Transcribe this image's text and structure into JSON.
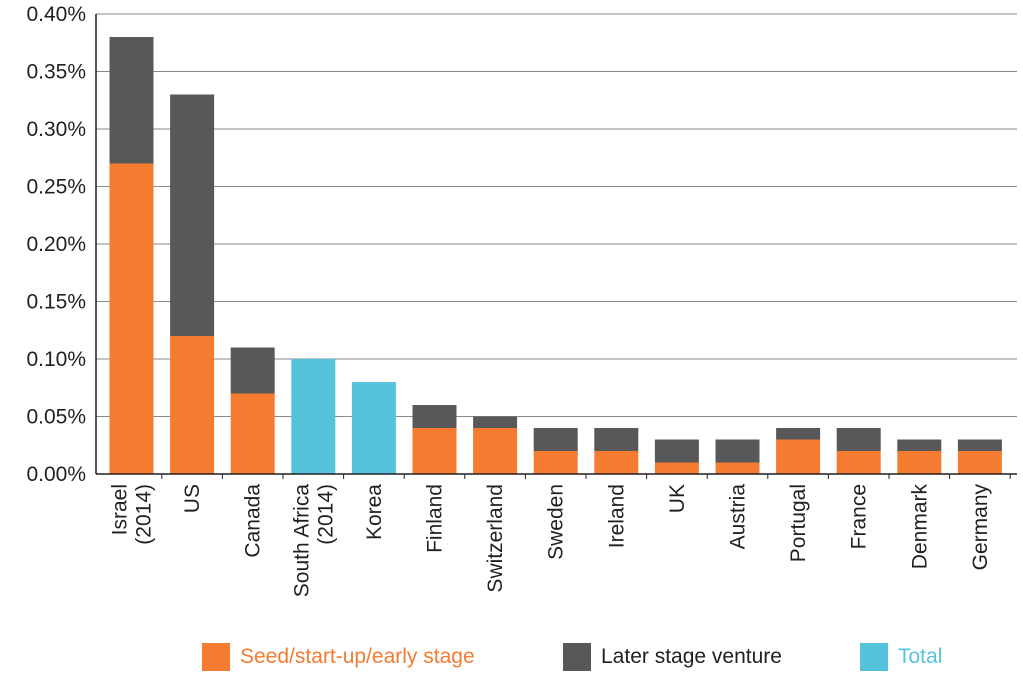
{
  "chart_data": {
    "type": "bar",
    "stacked": true,
    "categories": [
      [
        "Israel",
        "(2014)"
      ],
      [
        "US"
      ],
      [
        "Canada"
      ],
      [
        "South Africa",
        "(2014)"
      ],
      [
        "Korea"
      ],
      [
        "Finland"
      ],
      [
        "Switzerland"
      ],
      [
        "Sweden"
      ],
      [
        "Ireland"
      ],
      [
        "UK"
      ],
      [
        "Austria"
      ],
      [
        "Portugal"
      ],
      [
        "France"
      ],
      [
        "Denmark"
      ],
      [
        "Germany"
      ]
    ],
    "series": [
      {
        "name": "Seed/start-up/early stage",
        "color": "#f47b30",
        "values": [
          0.27,
          0.12,
          0.07,
          0,
          0,
          0.04,
          0.04,
          0.02,
          0.02,
          0.01,
          0.01,
          0.03,
          0.02,
          0.02,
          0.02
        ]
      },
      {
        "name": "Later stage venture",
        "color": "#58585a",
        "values": [
          0.11,
          0.21,
          0.04,
          0,
          0,
          0.02,
          0.01,
          0.02,
          0.02,
          0.02,
          0.02,
          0.01,
          0.02,
          0.01,
          0.01
        ]
      },
      {
        "name": "Total",
        "color": "#55c3dc",
        "values": [
          0,
          0,
          0,
          0.1,
          0.08,
          0,
          0,
          0,
          0,
          0,
          0,
          0,
          0,
          0,
          0
        ]
      }
    ],
    "yticks": [
      "0.00%",
      "0.05%",
      "0.10%",
      "0.15%",
      "0.20%",
      "0.25%",
      "0.30%",
      "0.35%",
      "0.40%"
    ],
    "ylim": [
      0,
      0.4
    ],
    "y_unit": "%",
    "grid": true,
    "legend_position": "bottom"
  }
}
